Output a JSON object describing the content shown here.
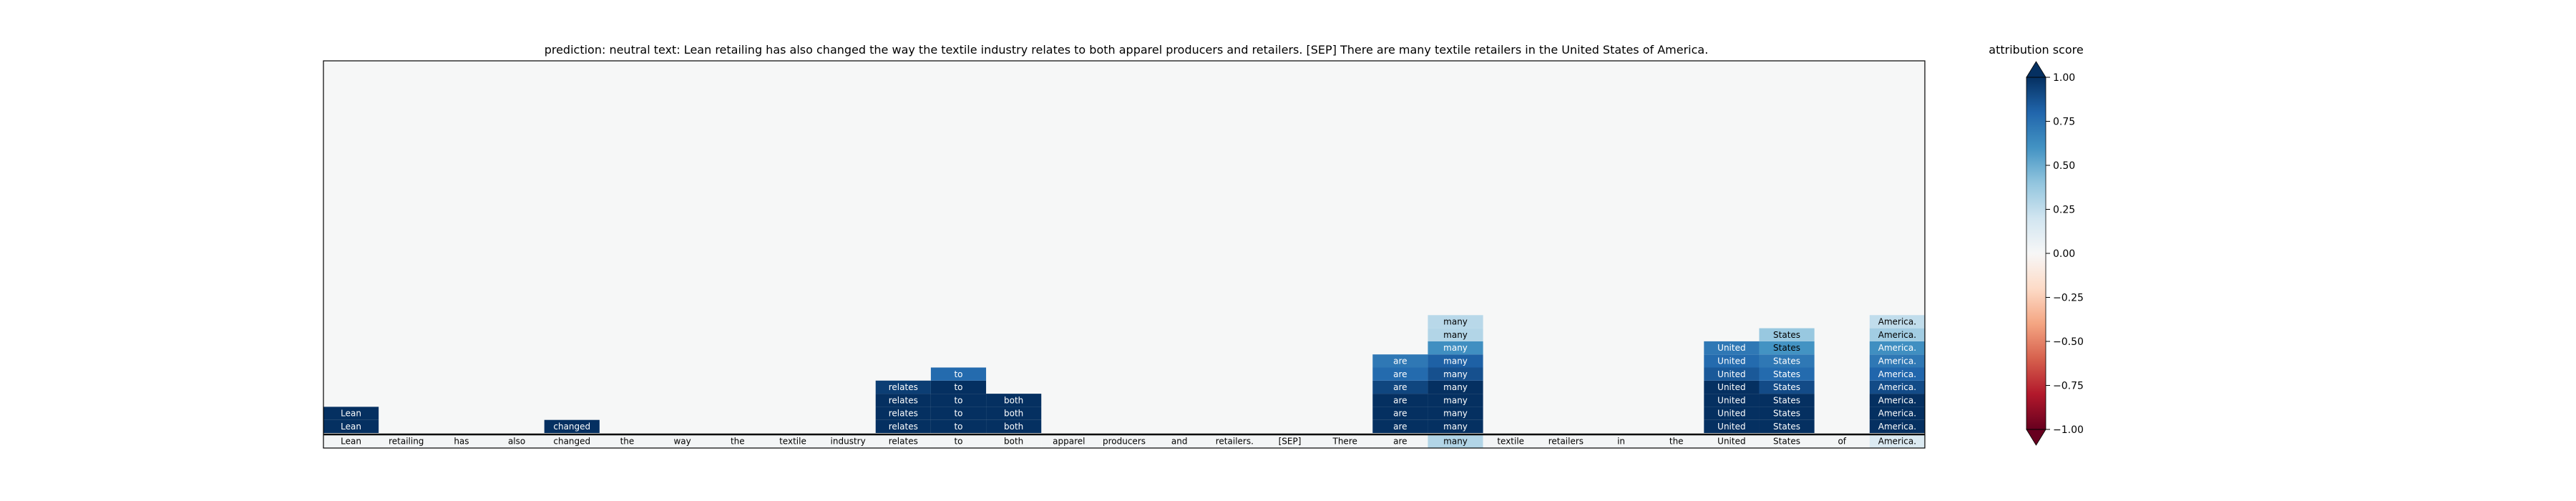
{
  "chart_data": {
    "type": "heatmap",
    "title": "prediction:  neutral     text:  Lean retailing has also changed the way the textile industry relates to both apparel producers and retailers. [SEP] There are many textile retailers in the United States of America.",
    "tokens": [
      "Lean",
      "retailing",
      "has",
      "also",
      "changed",
      "the",
      "way",
      "the",
      "textile",
      "industry",
      "relates",
      "to",
      "both",
      "apparel",
      "producers",
      "and",
      "retailers.",
      "[SEP]",
      "There",
      "are",
      "many",
      "textile",
      "retailers",
      "in",
      "the",
      "United",
      "States",
      "of",
      "America."
    ],
    "token_scores": [
      0.02,
      0.02,
      0.02,
      0.02,
      0.02,
      0.02,
      0.02,
      0.02,
      0.02,
      0.02,
      0.02,
      0.02,
      0.02,
      0.02,
      0.02,
      0.02,
      0.02,
      0.02,
      0.02,
      0.02,
      0.3,
      0.02,
      0.02,
      0.02,
      0.02,
      0.02,
      0.02,
      0.02,
      0.15
    ],
    "rows": 28,
    "cells": [
      {
        "col": 0,
        "rows": [
          [
            0,
            1.0
          ],
          [
            1,
            1.0
          ]
        ]
      },
      {
        "col": 4,
        "rows": [
          [
            0,
            1.0
          ]
        ]
      },
      {
        "col": 10,
        "rows": [
          [
            0,
            1.0
          ],
          [
            1,
            1.0
          ],
          [
            2,
            1.0
          ],
          [
            3,
            0.95
          ]
        ]
      },
      {
        "col": 11,
        "rows": [
          [
            0,
            1.0
          ],
          [
            1,
            1.0
          ],
          [
            2,
            1.0
          ],
          [
            3,
            1.0
          ],
          [
            4,
            0.78
          ]
        ]
      },
      {
        "col": 12,
        "rows": [
          [
            0,
            1.0
          ],
          [
            1,
            1.0
          ],
          [
            2,
            1.0
          ]
        ]
      },
      {
        "col": 19,
        "rows": [
          [
            0,
            1.0
          ],
          [
            1,
            1.0
          ],
          [
            2,
            1.0
          ],
          [
            3,
            0.92
          ],
          [
            4,
            0.78
          ],
          [
            5,
            0.72
          ]
        ]
      },
      {
        "col": 20,
        "rows": [
          [
            0,
            1.0
          ],
          [
            1,
            1.0
          ],
          [
            2,
            1.0
          ],
          [
            3,
            1.0
          ],
          [
            4,
            0.88
          ],
          [
            5,
            0.82
          ],
          [
            6,
            0.62
          ],
          [
            7,
            0.3
          ],
          [
            8,
            0.28
          ]
        ]
      },
      {
        "col": 25,
        "rows": [
          [
            0,
            1.0
          ],
          [
            1,
            1.0
          ],
          [
            2,
            1.0
          ],
          [
            3,
            1.0
          ],
          [
            4,
            0.85
          ],
          [
            5,
            0.78
          ],
          [
            6,
            0.72
          ]
        ]
      },
      {
        "col": 26,
        "rows": [
          [
            0,
            1.0
          ],
          [
            1,
            1.0
          ],
          [
            2,
            1.0
          ],
          [
            3,
            0.9
          ],
          [
            4,
            0.78
          ],
          [
            5,
            0.72
          ],
          [
            6,
            0.6
          ],
          [
            7,
            0.38
          ]
        ]
      },
      {
        "col": 28,
        "rows": [
          [
            0,
            1.0
          ],
          [
            1,
            1.0
          ],
          [
            2,
            1.0
          ],
          [
            3,
            0.9
          ],
          [
            4,
            0.8
          ],
          [
            5,
            0.72
          ],
          [
            6,
            0.62
          ],
          [
            7,
            0.35
          ],
          [
            8,
            0.25
          ]
        ]
      }
    ],
    "colorbar": {
      "label": "attribution score",
      "range": [
        -1.0,
        1.0
      ],
      "ticks": [
        1.0,
        0.75,
        0.5,
        0.25,
        0.0,
        -0.25,
        -0.5,
        -0.75,
        -1.0
      ],
      "tick_labels": [
        "1.00",
        "0.75",
        "0.50",
        "0.25",
        "0.00",
        "−0.25",
        "−0.50",
        "−0.75",
        "−1.00"
      ],
      "extend": "both"
    }
  }
}
